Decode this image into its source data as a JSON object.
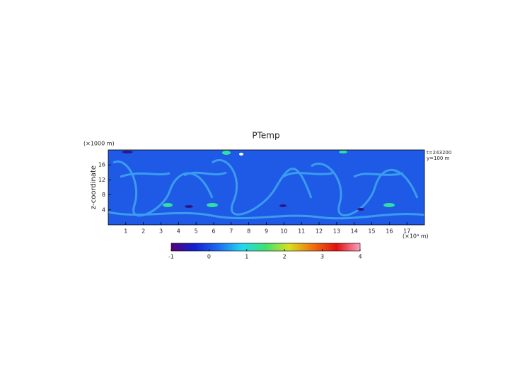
{
  "chart_data": {
    "type": "heatmap",
    "title": "PTemp",
    "y_label": "z-coordinate",
    "x_unit": "(×10⁴ m)",
    "y_unit": "(×1000 m)",
    "annotations": [
      "t=243200",
      "y=100 m"
    ],
    "xlim": [
      0,
      18
    ],
    "xticks": [
      1,
      2,
      3,
      4,
      5,
      6,
      7,
      8,
      9,
      10,
      11,
      12,
      13,
      14,
      15,
      16,
      17
    ],
    "ylim": [
      0,
      20
    ],
    "yticks": [
      4,
      8,
      12,
      16
    ],
    "colorbar": {
      "lim": [
        -1,
        4
      ],
      "ticks": [
        -1,
        0,
        1,
        2,
        3,
        4
      ],
      "colors": [
        "#5a007a",
        "#1020d0",
        "#1c6cf0",
        "#22d8f0",
        "#40e070",
        "#d8e020",
        "#f07010",
        "#e01010",
        "#f8a0c0"
      ]
    }
  }
}
